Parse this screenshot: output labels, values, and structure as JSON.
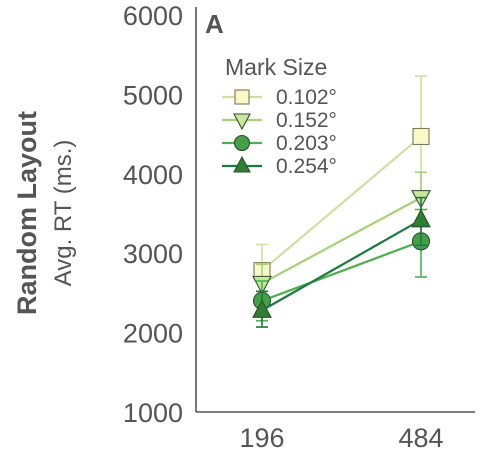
{
  "chart_data": {
    "type": "line",
    "panel_label": "A",
    "ylabel_main": "Random Layout",
    "ylabel_sub": "Avg. RT (ms.)",
    "categories": [
      "196",
      "484"
    ],
    "ylim": [
      1000,
      6000
    ],
    "yticks": [
      1000,
      2000,
      3000,
      4000,
      5000,
      6000
    ],
    "grid": false,
    "legend": {
      "title": "Mark Size",
      "position": "top-left"
    },
    "series": [
      {
        "name": "0.102°",
        "marker": "square",
        "color": "#d4dba5",
        "fill": "#f8f8c8",
        "values": [
          2780,
          4470
        ],
        "err_low": [
          2470,
          3700
        ],
        "err_high": [
          3110,
          5230
        ]
      },
      {
        "name": "0.152°",
        "marker": "triangle-down",
        "color": "#a8d07a",
        "fill": "#c9e69c",
        "values": [
          2620,
          3700
        ],
        "err_low": [
          2350,
          3350
        ],
        "err_high": [
          2860,
          4020
        ]
      },
      {
        "name": "0.203°",
        "marker": "circle",
        "color": "#4caf50",
        "fill": "#43a047",
        "values": [
          2400,
          3150
        ],
        "err_low": [
          2150,
          2700
        ],
        "err_high": [
          2650,
          3550
        ]
      },
      {
        "name": "0.254°",
        "marker": "triangle-up",
        "color": "#1b7a3d",
        "fill": "#2e7d32",
        "values": [
          2280,
          3420
        ],
        "err_low": [
          2070,
          3100
        ],
        "err_high": [
          2520,
          3700
        ]
      }
    ]
  }
}
